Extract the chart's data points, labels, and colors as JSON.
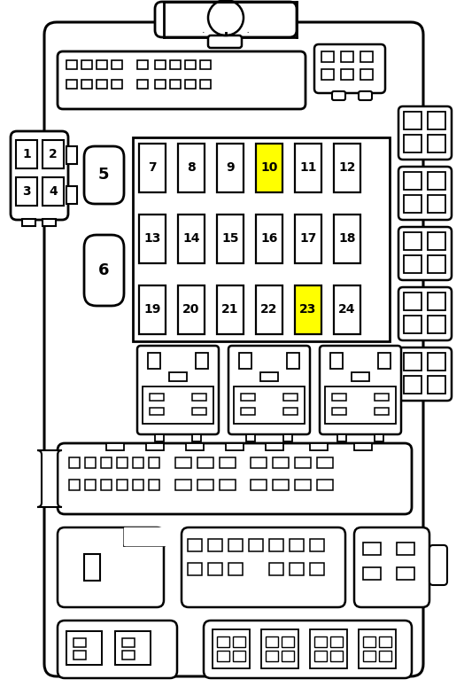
{
  "bg_color": "#ffffff",
  "lc": "#000000",
  "yellow": "#ffff00",
  "fuse_row1": [
    7,
    8,
    9,
    10,
    11,
    12
  ],
  "fuse_row2": [
    13,
    14,
    15,
    16,
    17,
    18
  ],
  "fuse_row3": [
    19,
    20,
    21,
    22,
    23,
    24
  ],
  "highlighted": [
    10,
    23
  ],
  "side_labels": [
    1,
    2,
    3,
    4
  ],
  "big_labels": [
    5,
    6
  ]
}
